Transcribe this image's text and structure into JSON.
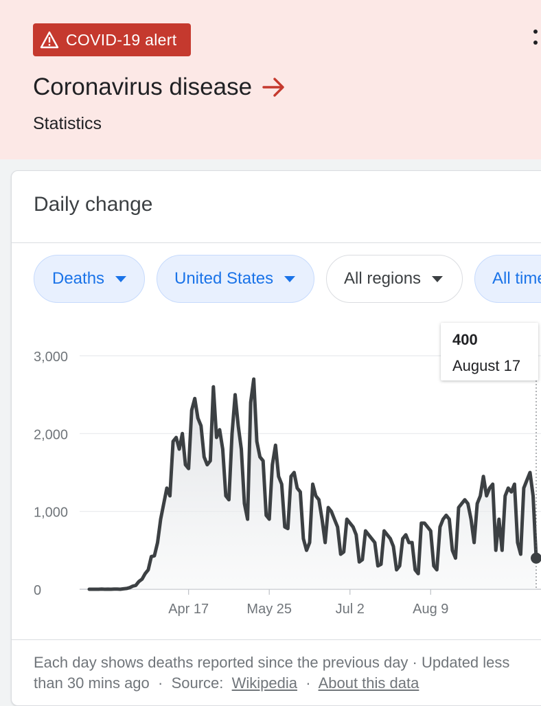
{
  "alert": {
    "label": "COVID-19 alert",
    "icon": "warning-icon",
    "color": "#c5392e"
  },
  "header": {
    "title": "Coronavirus disease",
    "subtitle": "Statistics",
    "background": "#fce8e6",
    "arrow_color": "#c5392e"
  },
  "card": {
    "title": "Daily change",
    "filters": [
      {
        "label": "Deaths",
        "selected": true
      },
      {
        "label": "United States",
        "selected": true
      },
      {
        "label": "All regions",
        "selected": false
      },
      {
        "label": "All time",
        "selected": true
      }
    ]
  },
  "tooltip": {
    "value": "400",
    "date": "August 17"
  },
  "footer": {
    "text": "Each day shows deaths reported since the previous day · Updated less than 30 mins ago",
    "source_label": "Source:",
    "source_link": "Wikipedia",
    "about_link": "About this data"
  },
  "chart_data": {
    "type": "area",
    "title": "",
    "xlabel": "",
    "ylabel": "",
    "ylim": [
      0,
      3000
    ],
    "yticks": [
      0,
      1000,
      2000,
      3000
    ],
    "ytick_labels": [
      "0",
      "1,000",
      "2,000",
      "3,000"
    ],
    "xticks": [
      "Apr 17",
      "May 25",
      "Jul 2",
      "Aug 9"
    ],
    "line_color": "#3c4043",
    "grid": true,
    "series": [
      {
        "values": [
          0,
          0,
          0,
          0,
          2,
          0,
          1,
          0,
          3,
          2,
          0,
          5,
          10,
          20,
          40,
          50,
          100,
          130,
          200,
          250,
          420,
          430,
          600,
          900,
          1100,
          1300,
          1200,
          1900,
          1950,
          1800,
          2000,
          1600,
          1550,
          2300,
          2450,
          2200,
          2100,
          1700,
          1600,
          1650,
          2600,
          1950,
          2050,
          1800,
          1200,
          1150,
          2000,
          2500,
          2100,
          1800,
          1100,
          900,
          2400,
          2700,
          1900,
          1700,
          1650,
          950,
          900,
          1600,
          1850,
          1450,
          1350,
          800,
          780,
          1450,
          1500,
          1300,
          1250,
          650,
          500,
          600,
          1350,
          1200,
          1150,
          900,
          600,
          1050,
          1000,
          900,
          800,
          450,
          480,
          900,
          850,
          800,
          700,
          350,
          380,
          750,
          700,
          650,
          600,
          300,
          320,
          750,
          700,
          650,
          550,
          250,
          300,
          650,
          700,
          600,
          600,
          250,
          200,
          850,
          850,
          800,
          750,
          300,
          250,
          800,
          900,
          950,
          900,
          500,
          400,
          1050,
          1100,
          1150,
          1100,
          900,
          600,
          1100,
          1200,
          1450,
          1200,
          1300,
          1350,
          500,
          900,
          500,
          1200,
          1300,
          1250,
          1350,
          600,
          450,
          1300,
          1400,
          1500,
          1200,
          400
        ]
      }
    ],
    "highlight": {
      "date": "August 17",
      "value": 400
    }
  }
}
